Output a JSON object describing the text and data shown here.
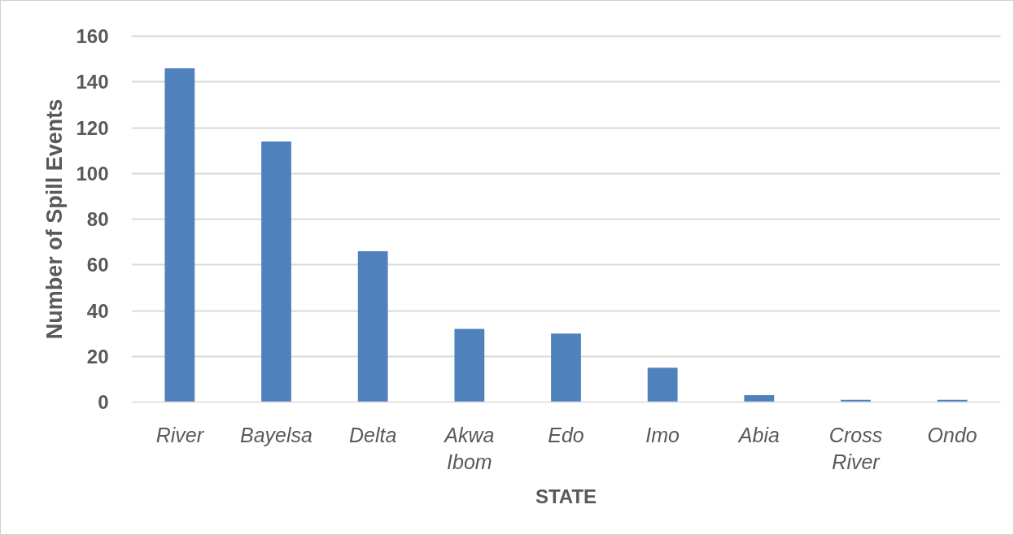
{
  "chart_data": {
    "type": "bar",
    "xlabel": "STATE",
    "ylabel": "Number of Spill Events",
    "categories": [
      "River",
      "Bayelsa",
      "Delta",
      "Akwa Ibom",
      "Edo",
      "Imo",
      "Abia",
      "Cross River",
      "Ondo"
    ],
    "values": [
      146,
      114,
      66,
      32,
      30,
      15,
      3,
      1,
      1
    ],
    "color": "#4f81bd",
    "ylim": [
      0,
      160
    ],
    "yticks": [
      0,
      20,
      40,
      60,
      80,
      100,
      120,
      140,
      160
    ],
    "grid": "y"
  }
}
